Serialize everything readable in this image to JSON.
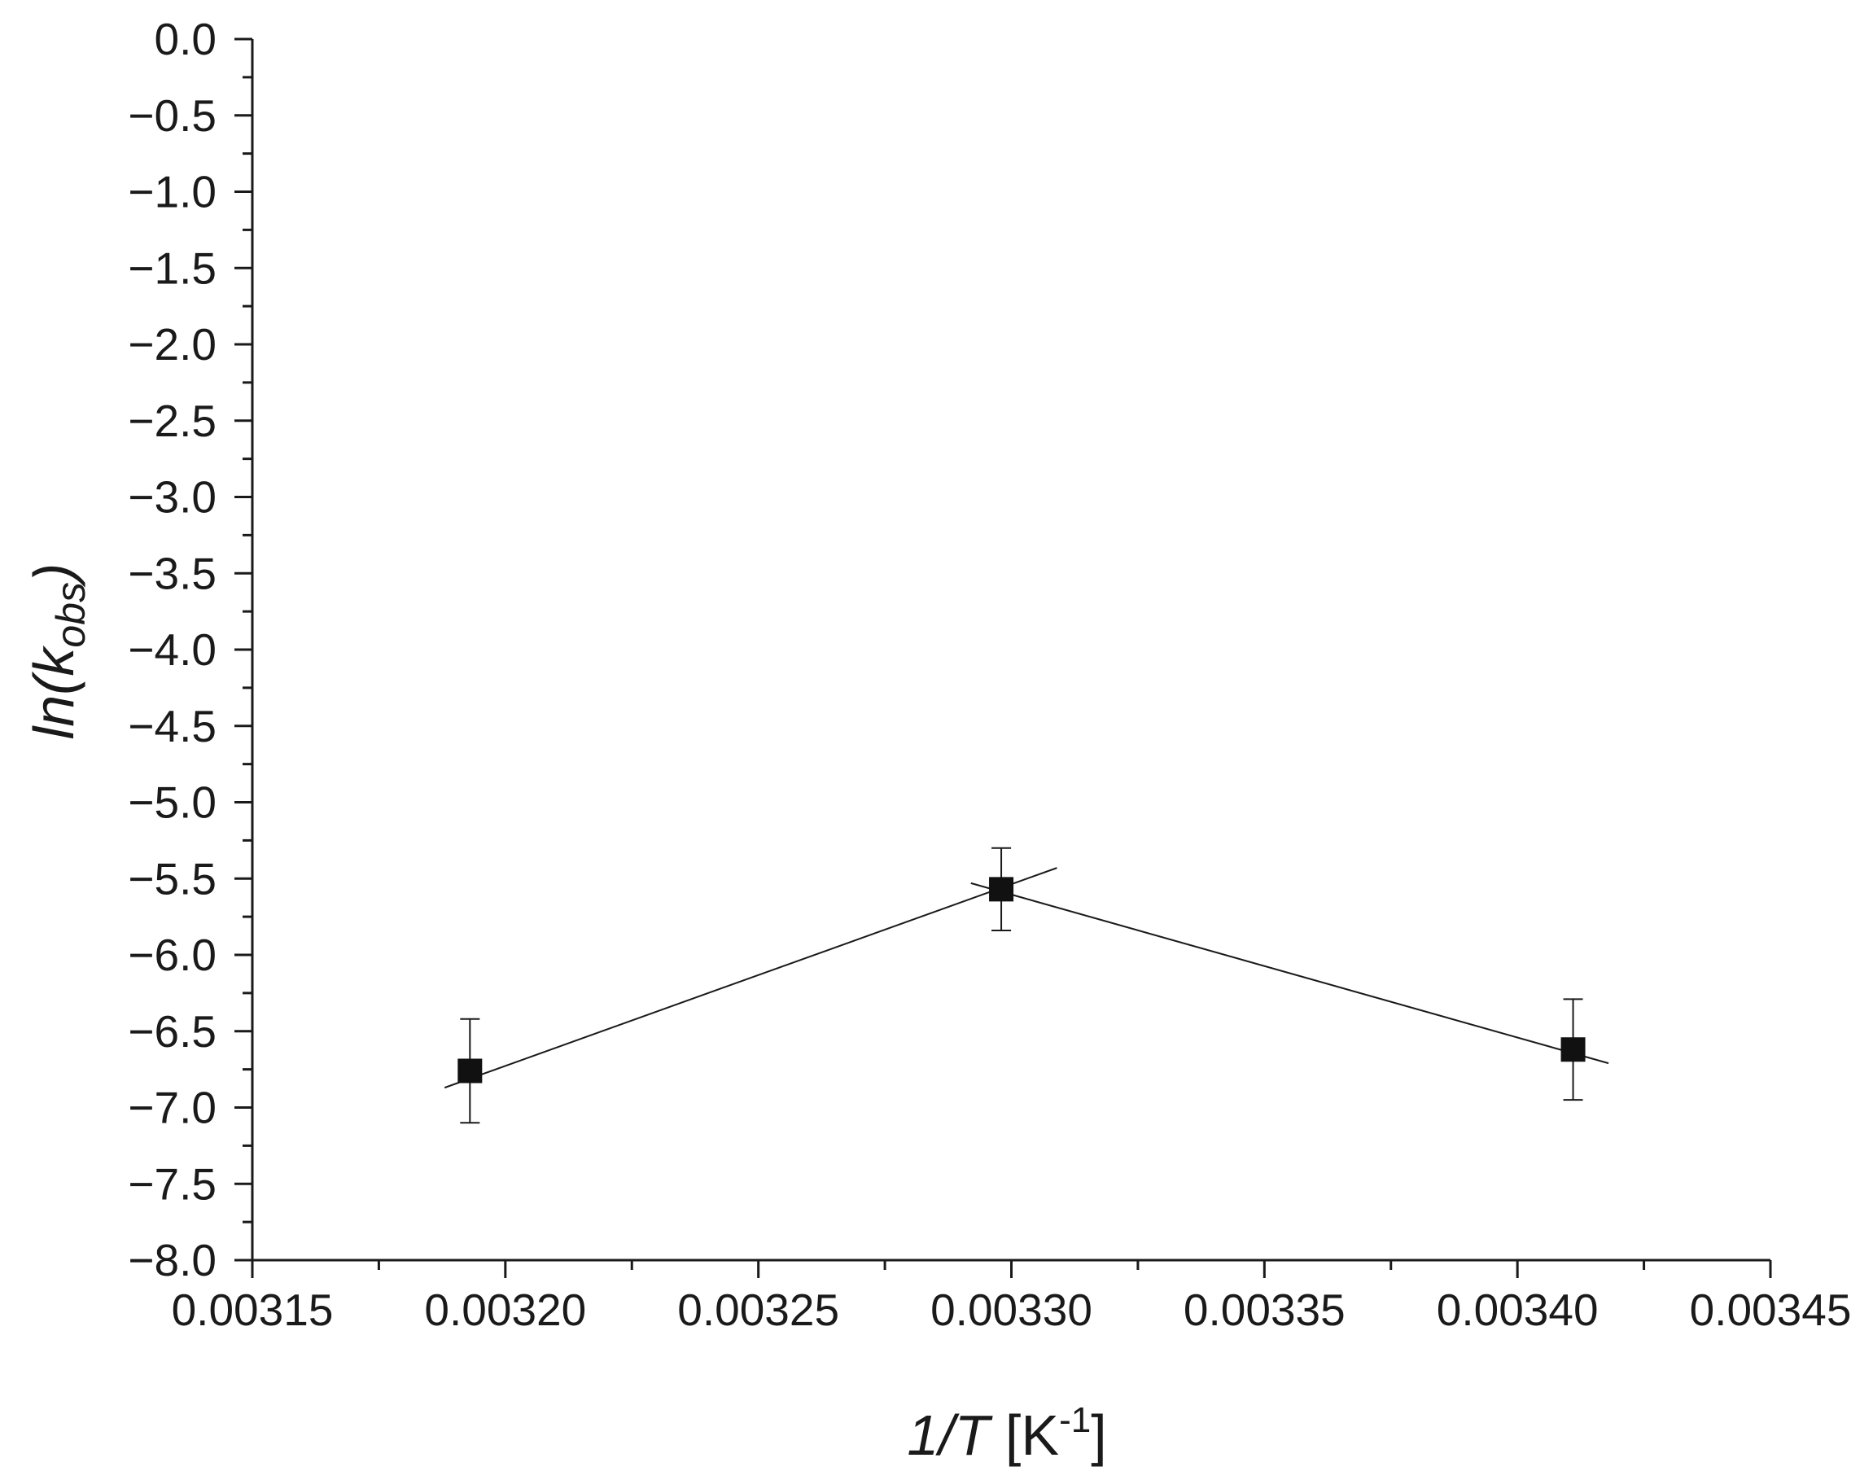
{
  "chart_data": {
    "type": "scatter",
    "title": "",
    "xlabel": {
      "parts": [
        "1/T",
        " [K",
        "-1",
        "]"
      ]
    },
    "ylabel": {
      "parts": [
        "ln(k",
        "obs",
        ")"
      ]
    },
    "xlim": [
      0.00315,
      0.00345
    ],
    "ylim": [
      -8.0,
      0.0
    ],
    "x_ticks": [
      "0.00315",
      "0.00320",
      "0.00325",
      "0.00330",
      "0.00335",
      "0.00340",
      "0.00345"
    ],
    "x_tick_values": [
      0.00315,
      0.0032,
      0.00325,
      0.0033,
      0.00335,
      0.0034,
      0.00345
    ],
    "y_ticks": [
      "0.0",
      "−0.5",
      "−1.0",
      "−1.5",
      "−2.0",
      "−2.5",
      "−3.0",
      "−3.5",
      "−4.0",
      "−4.5",
      "−5.0",
      "−5.5",
      "−6.0",
      "−6.5",
      "−7.0",
      "−7.5",
      "−8.0"
    ],
    "y_tick_values": [
      0.0,
      -0.5,
      -1.0,
      -1.5,
      -2.0,
      -2.5,
      -3.0,
      -3.5,
      -4.0,
      -4.5,
      -5.0,
      -5.5,
      -6.0,
      -6.5,
      -7.0,
      -7.5,
      -8.0
    ],
    "x_minor_ticks": [
      0.003175,
      0.003225,
      0.003275,
      0.003325,
      0.003375,
      0.003425
    ],
    "grid": false,
    "points": [
      {
        "x": 0.003193,
        "y": -6.76,
        "err": 0.34
      },
      {
        "x": 0.003298,
        "y": -5.57,
        "err": 0.27
      },
      {
        "x": 0.003411,
        "y": -6.62,
        "err": 0.33
      }
    ],
    "fit_segments": [
      {
        "x": [
          0.003188,
          0.003309
        ],
        "y": [
          -6.87,
          -5.43
        ]
      },
      {
        "x": [
          0.003292,
          0.003418
        ],
        "y": [
          -5.53,
          -6.71
        ]
      }
    ],
    "colors": {
      "ink": "#1a1a1a",
      "marker": "#111111",
      "background": "#ffffff"
    }
  }
}
